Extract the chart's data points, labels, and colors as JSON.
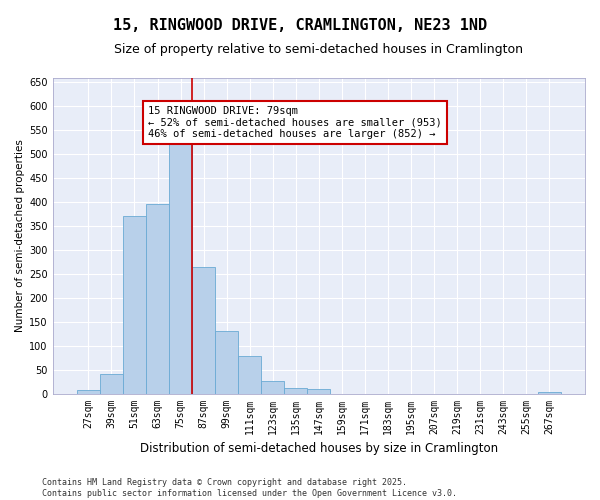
{
  "title": "15, RINGWOOD DRIVE, CRAMLINGTON, NE23 1ND",
  "subtitle": "Size of property relative to semi-detached houses in Cramlington",
  "xlabel": "Distribution of semi-detached houses by size in Cramlington",
  "ylabel": "Number of semi-detached properties",
  "categories": [
    "27sqm",
    "39sqm",
    "51sqm",
    "63sqm",
    "75sqm",
    "87sqm",
    "99sqm",
    "111sqm",
    "123sqm",
    "135sqm",
    "147sqm",
    "159sqm",
    "171sqm",
    "183sqm",
    "195sqm",
    "207sqm",
    "219sqm",
    "231sqm",
    "243sqm",
    "255sqm",
    "267sqm"
  ],
  "values": [
    8,
    40,
    370,
    395,
    525,
    265,
    130,
    78,
    27,
    12,
    10,
    0,
    0,
    0,
    0,
    0,
    0,
    0,
    0,
    0,
    4
  ],
  "bar_color": "#b8d0ea",
  "bar_edge_color": "#6aaad4",
  "vline_color": "#cc0000",
  "annotation_text": "15 RINGWOOD DRIVE: 79sqm\n← 52% of semi-detached houses are smaller (953)\n46% of semi-detached houses are larger (852) →",
  "annotation_box_color": "#ffffff",
  "annotation_box_edge": "#cc0000",
  "ylim": [
    0,
    660
  ],
  "yticks": [
    0,
    50,
    100,
    150,
    200,
    250,
    300,
    350,
    400,
    450,
    500,
    550,
    600,
    650
  ],
  "background_color": "#e8edf8",
  "grid_color": "#ffffff",
  "footer_text": "Contains HM Land Registry data © Crown copyright and database right 2025.\nContains public sector information licensed under the Open Government Licence v3.0.",
  "title_fontsize": 11,
  "subtitle_fontsize": 9,
  "xlabel_fontsize": 8.5,
  "ylabel_fontsize": 7.5,
  "tick_fontsize": 7,
  "annotation_fontsize": 7.5,
  "footer_fontsize": 6
}
